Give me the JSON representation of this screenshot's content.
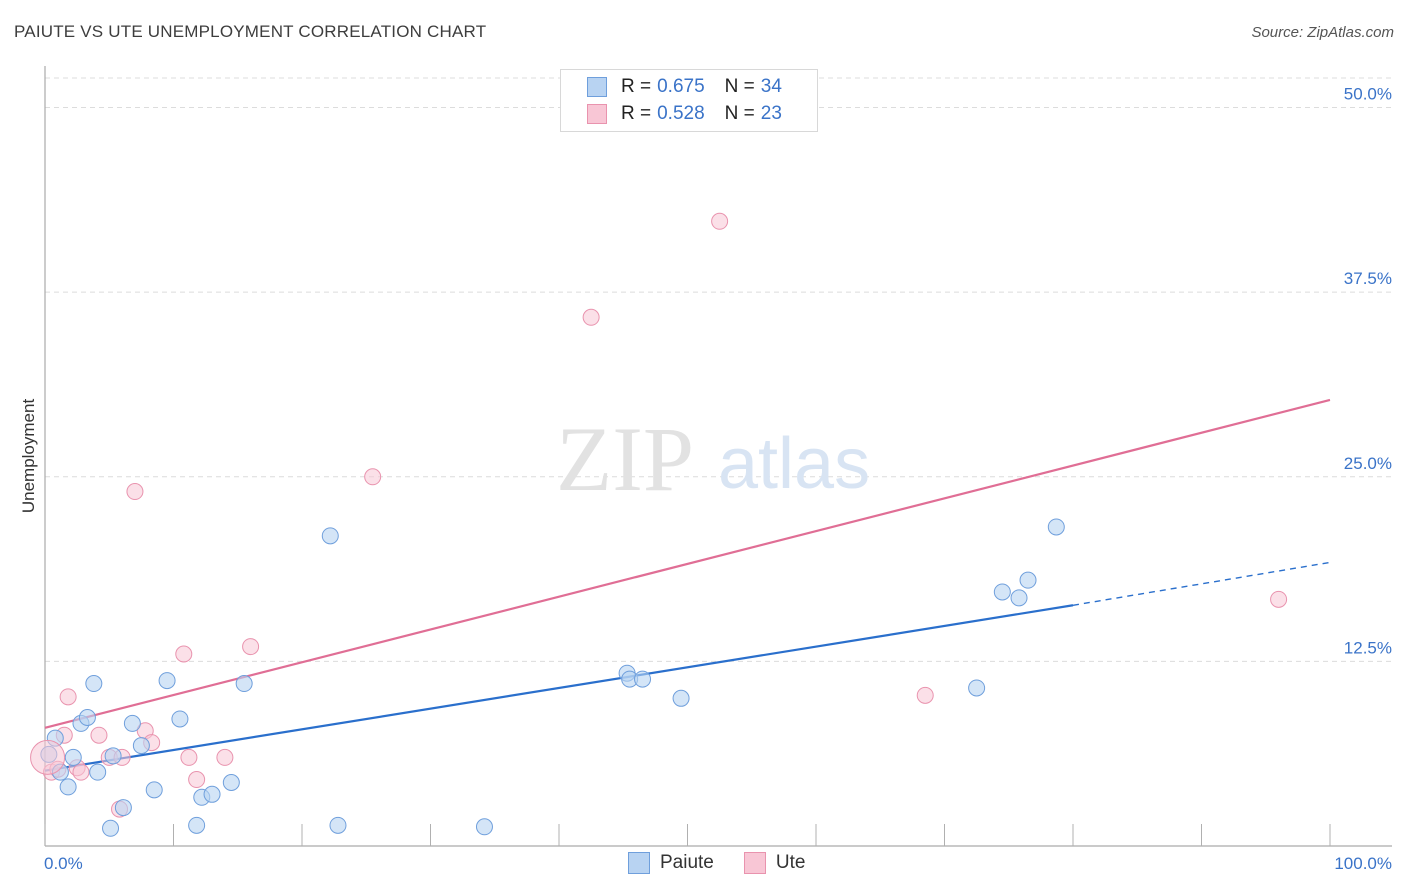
{
  "header": {
    "title": "PAIUTE VS UTE UNEMPLOYMENT CORRELATION CHART",
    "source": "Source: ZipAtlas.com"
  },
  "watermark": {
    "zip": "ZIP",
    "atlas": "atlas"
  },
  "legend": {
    "series": [
      {
        "name": "Paiute",
        "r_label": "R = ",
        "r_value": "0.675",
        "n_label": "N = ",
        "n_value": "34",
        "fill": "#b8d3f2",
        "stroke": "#6f9fdc"
      },
      {
        "name": "Ute",
        "r_label": "R = ",
        "r_value": "0.528",
        "n_label": "N = ",
        "n_value": "23",
        "fill": "#f8c6d5",
        "stroke": "#e993ae"
      }
    ]
  },
  "colors": {
    "paiute_line": "#2a6fcc",
    "ute_line": "#e06e95",
    "grid": "#dcdcdc",
    "axis": "#aaaaaa",
    "tick_text": "#3a73c8"
  },
  "chart_data": {
    "type": "scatter",
    "title": "PAIUTE VS UTE UNEMPLOYMENT CORRELATION CHART",
    "xlabel": "",
    "ylabel": "Unemployment",
    "xlim": [
      0,
      100
    ],
    "ylim": [
      0,
      52
    ],
    "x_tick_labels": [
      "0.0%",
      "100.0%"
    ],
    "y_ticks": [
      12.5,
      25.0,
      37.5,
      50.0
    ],
    "y_tick_labels": [
      "12.5%",
      "25.0%",
      "37.5%",
      "50.0%"
    ],
    "grid": true,
    "legend_position": "top-center",
    "series": [
      {
        "name": "Paiute",
        "points": [
          [
            0.3,
            6.2
          ],
          [
            0.8,
            7.3
          ],
          [
            1.2,
            5.0
          ],
          [
            1.8,
            4.0
          ],
          [
            2.2,
            6.0
          ],
          [
            2.8,
            8.3
          ],
          [
            3.3,
            8.7
          ],
          [
            3.8,
            11.0
          ],
          [
            4.1,
            5.0
          ],
          [
            5.1,
            1.2
          ],
          [
            5.3,
            6.1
          ],
          [
            6.1,
            2.6
          ],
          [
            6.8,
            8.3
          ],
          [
            7.5,
            6.8
          ],
          [
            8.5,
            3.8
          ],
          [
            9.5,
            11.2
          ],
          [
            10.5,
            8.6
          ],
          [
            11.8,
            1.4
          ],
          [
            12.2,
            3.3
          ],
          [
            13.0,
            3.5
          ],
          [
            14.5,
            4.3
          ],
          [
            15.5,
            11.0
          ],
          [
            22.2,
            21.0
          ],
          [
            22.8,
            1.4
          ],
          [
            34.2,
            1.3
          ],
          [
            45.3,
            11.7
          ],
          [
            45.5,
            11.3
          ],
          [
            46.5,
            11.3
          ],
          [
            49.5,
            10.0
          ],
          [
            72.5,
            10.7
          ],
          [
            74.5,
            17.2
          ],
          [
            75.8,
            16.8
          ],
          [
            76.5,
            18.0
          ],
          [
            78.7,
            21.6
          ]
        ],
        "trend": {
          "x0": 0,
          "y0": 5.1,
          "x1": 80,
          "y1": 16.3,
          "dashed_to_x": 100,
          "dashed_to_y": 19.2
        }
      },
      {
        "name": "Ute",
        "points": [
          [
            0.5,
            5.0
          ],
          [
            1.0,
            5.2
          ],
          [
            1.5,
            7.5
          ],
          [
            1.8,
            10.1
          ],
          [
            2.5,
            5.3
          ],
          [
            2.8,
            5.0
          ],
          [
            4.2,
            7.5
          ],
          [
            5.0,
            6.0
          ],
          [
            5.8,
            2.5
          ],
          [
            6.0,
            6.0
          ],
          [
            7.0,
            24.0
          ],
          [
            7.8,
            7.8
          ],
          [
            8.3,
            7.0
          ],
          [
            10.8,
            13.0
          ],
          [
            11.2,
            6.0
          ],
          [
            11.8,
            4.5
          ],
          [
            14.0,
            6.0
          ],
          [
            16.0,
            13.5
          ],
          [
            25.5,
            25.0
          ],
          [
            42.5,
            35.8
          ],
          [
            52.5,
            42.3
          ],
          [
            68.5,
            10.2
          ],
          [
            96.0,
            16.7
          ]
        ],
        "trend": {
          "x0": 0,
          "y0": 8.0,
          "x1": 100,
          "y1": 30.2
        }
      }
    ]
  }
}
